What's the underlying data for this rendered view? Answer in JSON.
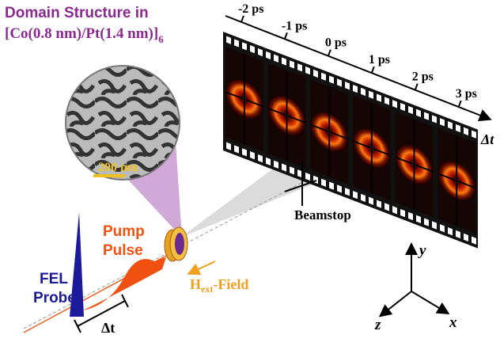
{
  "title": {
    "line1": "Domain Structure in",
    "line2": "[Co(0.8 nm)/Pt(1.4 nm)]",
    "subscript": "6"
  },
  "inset": {
    "scale_bar": "200 nm"
  },
  "timeline": {
    "labels": [
      "-2 ps",
      "-1 ps",
      "0 ps",
      "1 ps",
      "2 ps",
      "3 ps"
    ],
    "axis": "Δt"
  },
  "beamstop": "Beamstop",
  "pump": {
    "line1": "Pump",
    "line2": "Pulse"
  },
  "probe": {
    "line1": "FEL",
    "line2": "Probe"
  },
  "field": {
    "main": "H",
    "subscript": "ext",
    "suffix": "-Field"
  },
  "delay": "Δt",
  "axes": {
    "y": "y",
    "z": "z",
    "x": "x"
  }
}
